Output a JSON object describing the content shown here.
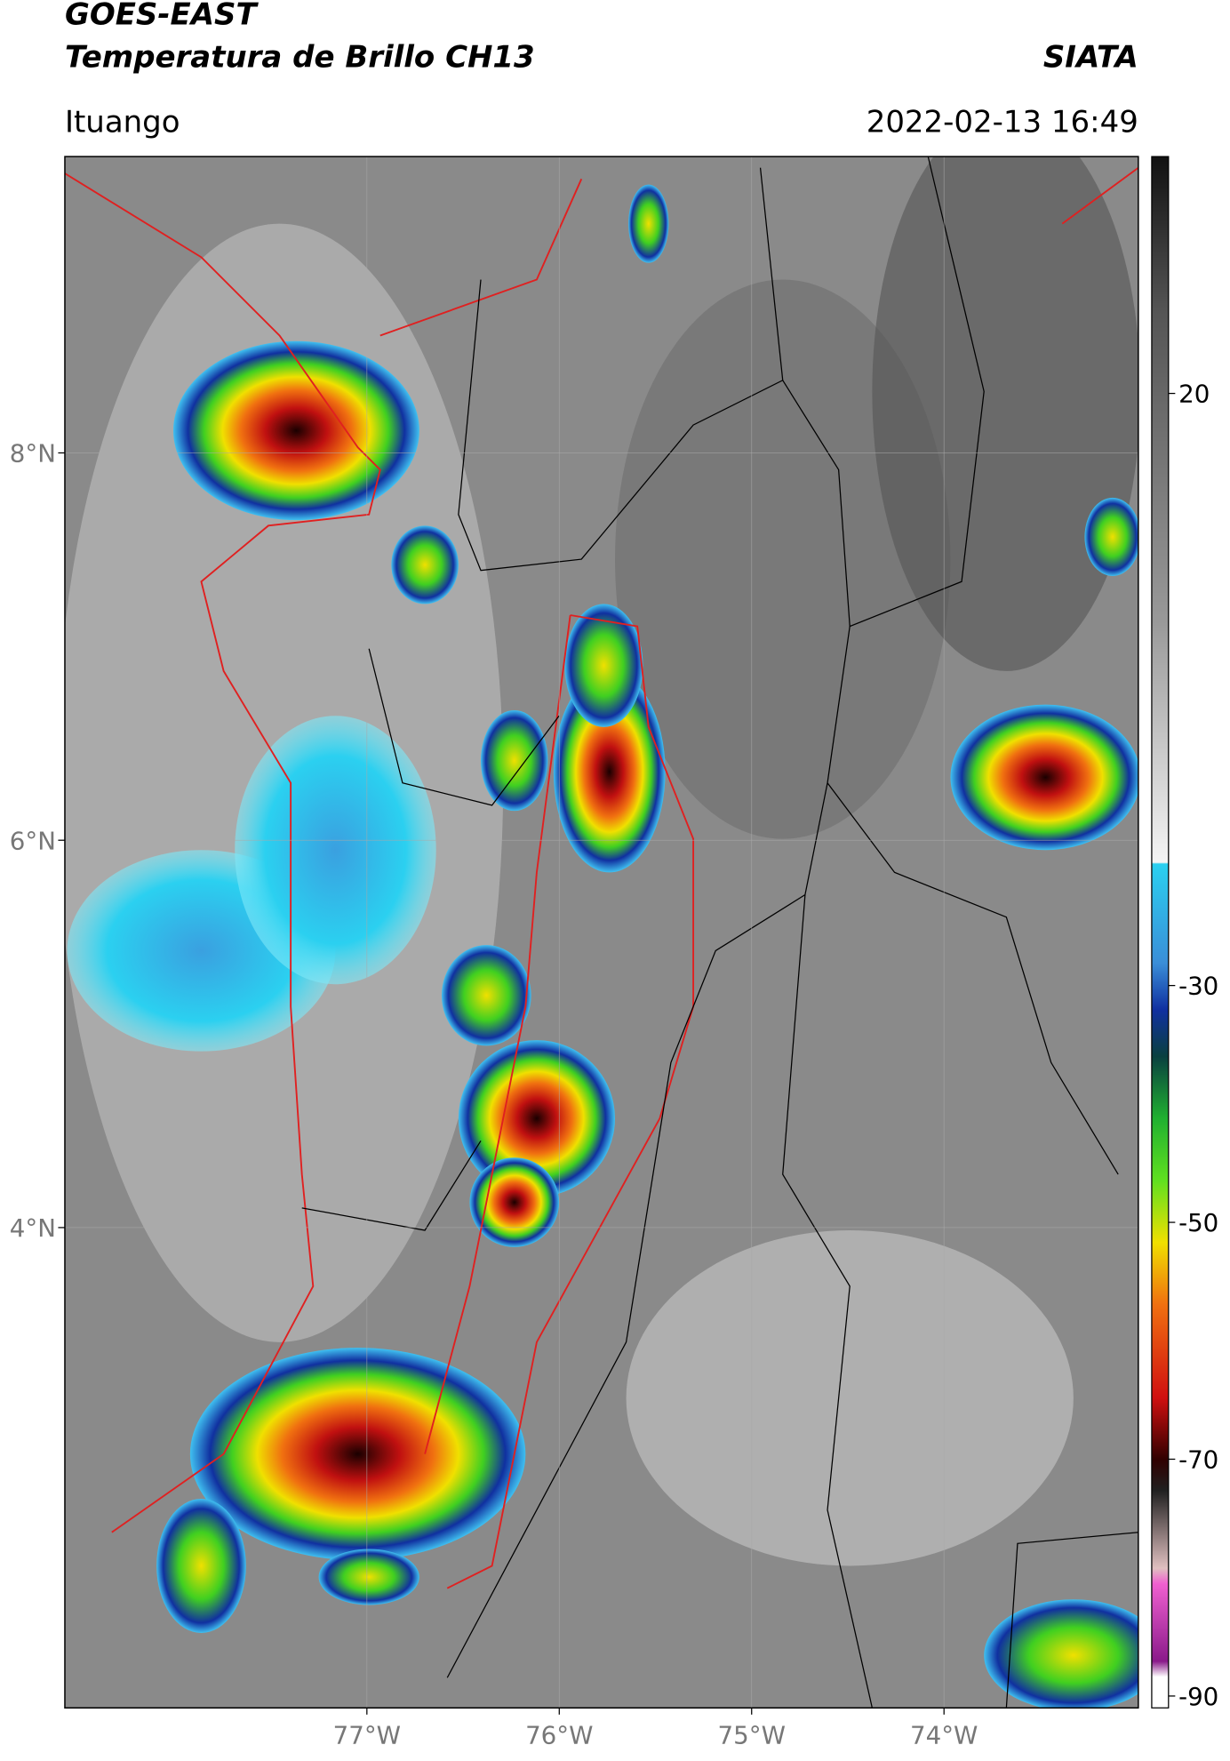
{
  "header": {
    "title": "GOES-EAST",
    "subtitle": "Temperatura de Brillo CH13",
    "agency": "SIATA",
    "location": "Ituango",
    "timestamp": "2022-02-13 16:49"
  },
  "map": {
    "xlim": [
      -78.57,
      -72.99
    ],
    "ylim": [
      1.52,
      9.53
    ],
    "xticks": [
      {
        "value": -77,
        "label": "77°W"
      },
      {
        "value": -76,
        "label": "76°W"
      },
      {
        "value": -75,
        "label": "75°W"
      },
      {
        "value": -74,
        "label": "74°W"
      }
    ],
    "yticks": [
      {
        "value": 8,
        "label": "8°N"
      },
      {
        "value": 6,
        "label": "6°N"
      },
      {
        "value": 4,
        "label": "4°N"
      }
    ],
    "grid": true
  },
  "colorbar": {
    "lim": [
      -91,
      40
    ],
    "ticks": [
      20,
      -30,
      -50,
      -70,
      -90
    ]
  }
}
